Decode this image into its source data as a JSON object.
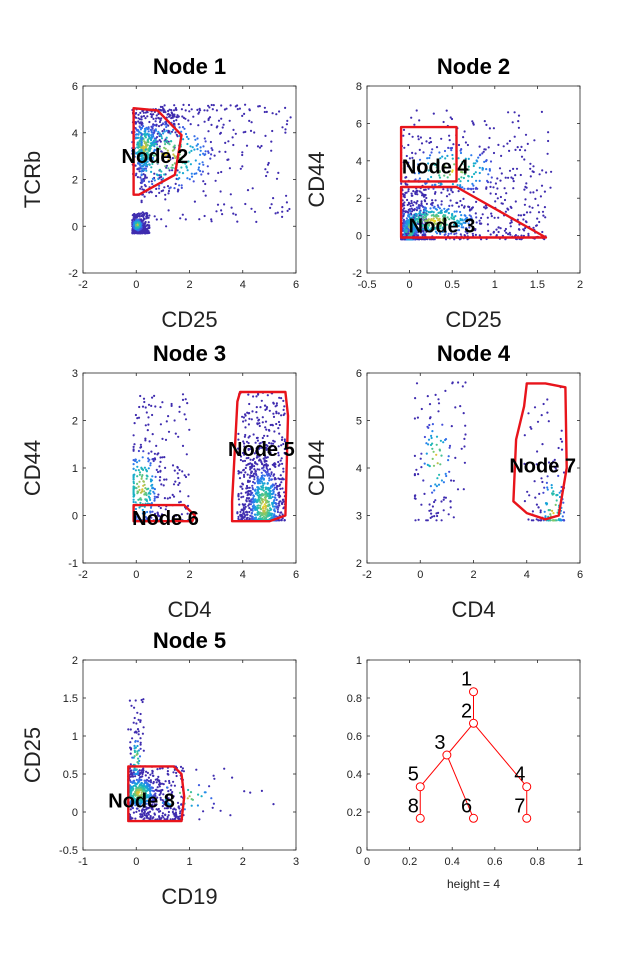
{
  "chart_data": [
    {
      "type": "scatter",
      "title": "Node 1",
      "xlabel": "CD25",
      "ylabel": "TCRb",
      "xlim": [
        -2,
        6
      ],
      "ylim": [
        -2,
        6
      ],
      "xticks": [
        -2,
        0,
        2,
        4,
        6
      ],
      "yticks": [
        -2,
        0,
        2,
        4,
        6
      ],
      "gates": [
        {
          "label": "Node 2",
          "label_at": [
            0.7,
            3.0
          ],
          "polygon": [
            [
              -0.1,
              5.05
            ],
            [
              0.8,
              4.95
            ],
            [
              1.7,
              3.9
            ],
            [
              1.45,
              2.2
            ],
            [
              0.1,
              1.35
            ],
            [
              -0.1,
              1.35
            ]
          ]
        }
      ],
      "clusters": [
        {
          "x": [
            -0.15,
            0.5
          ],
          "y": [
            -0.3,
            0.6
          ],
          "n": 520,
          "dense": [
            0.05,
            0.05
          ],
          "skew": 2
        },
        {
          "x": [
            -0.15,
            1.6
          ],
          "y": [
            1.5,
            5.0
          ],
          "n": 480,
          "dense": [
            0.3,
            3.4
          ],
          "skew": 2
        },
        {
          "x": [
            0.2,
            5.8
          ],
          "y": [
            0.0,
            5.2
          ],
          "n": 430,
          "dense": [
            1.2,
            3.0
          ],
          "skew": 1.6
        }
      ]
    },
    {
      "type": "scatter",
      "title": "Node 2",
      "xlabel": "CD25",
      "ylabel": "CD44",
      "xlim": [
        -0.5,
        2
      ],
      "ylim": [
        -2,
        8
      ],
      "xticks": [
        -0.5,
        0,
        0.5,
        1,
        1.5,
        2
      ],
      "yticks": [
        -2,
        0,
        2,
        4,
        6,
        8
      ],
      "gates": [
        {
          "label": "Node 4",
          "label_at": [
            0.3,
            3.7
          ],
          "polygon": [
            [
              -0.1,
              5.8
            ],
            [
              0.55,
              5.8
            ],
            [
              0.55,
              2.9
            ],
            [
              -0.1,
              2.9
            ]
          ]
        },
        {
          "label": "Node 3",
          "label_at": [
            0.38,
            0.55
          ],
          "polygon": [
            [
              -0.1,
              2.6
            ],
            [
              0.55,
              2.6
            ],
            [
              1.6,
              -0.1
            ],
            [
              -0.1,
              -0.1
            ]
          ]
        }
      ],
      "clusters": [
        {
          "x": [
            -0.1,
            0.2
          ],
          "y": [
            -0.2,
            2.5
          ],
          "n": 520,
          "dense": [
            0.0,
            0.3
          ],
          "skew": 2
        },
        {
          "x": [
            -0.1,
            1.6
          ],
          "y": [
            -0.2,
            2.7
          ],
          "n": 560,
          "dense": [
            0.3,
            0.8
          ],
          "skew": 1.8
        },
        {
          "x": [
            -0.1,
            1.7
          ],
          "y": [
            2.5,
            6.7
          ],
          "n": 300,
          "dense": [
            0.5,
            3.5
          ],
          "skew": 1.3
        }
      ]
    },
    {
      "type": "scatter",
      "title": "Node 3",
      "xlabel": "CD4",
      "ylabel": "CD44",
      "xlim": [
        -2,
        6
      ],
      "ylim": [
        -1,
        3
      ],
      "xticks": [
        -2,
        0,
        2,
        4,
        6
      ],
      "yticks": [
        -1,
        0,
        1,
        2,
        3
      ],
      "gates": [
        {
          "label": "Node 5",
          "label_at": [
            4.7,
            1.4
          ],
          "polygon": [
            [
              3.9,
              2.6
            ],
            [
              5.6,
              2.6
            ],
            [
              5.7,
              2.1
            ],
            [
              5.6,
              0.0
            ],
            [
              5.0,
              -0.12
            ],
            [
              3.6,
              -0.12
            ],
            [
              3.6,
              0.3
            ],
            [
              3.8,
              2.4
            ]
          ]
        },
        {
          "label": "Node 6",
          "label_at": [
            1.1,
            -0.05
          ],
          "polygon": [
            [
              -0.1,
              0.22
            ],
            [
              1.8,
              0.22
            ],
            [
              2.2,
              0.0
            ],
            [
              2.1,
              -0.12
            ],
            [
              -0.1,
              -0.12
            ]
          ]
        }
      ],
      "clusters": [
        {
          "x": [
            3.8,
            5.6
          ],
          "y": [
            -0.1,
            2.6
          ],
          "n": 900,
          "dense": [
            4.8,
            0.2
          ],
          "skew": 1.5
        },
        {
          "x": [
            -0.1,
            2.0
          ],
          "y": [
            -0.1,
            2.6
          ],
          "n": 330,
          "dense": [
            0.2,
            0.6
          ],
          "skew": 1.5
        }
      ]
    },
    {
      "type": "scatter",
      "title": "Node 4",
      "xlabel": "CD4",
      "ylabel": "CD44",
      "xlim": [
        -2,
        6
      ],
      "ylim": [
        2,
        6
      ],
      "xticks": [
        -2,
        0,
        2,
        4,
        6
      ],
      "yticks": [
        2,
        3,
        4,
        5,
        6
      ],
      "gates": [
        {
          "label": "Node 7",
          "label_at": [
            4.6,
            4.05
          ],
          "polygon": [
            [
              4.0,
              5.78
            ],
            [
              4.7,
              5.78
            ],
            [
              5.45,
              5.7
            ],
            [
              5.5,
              4.0
            ],
            [
              5.2,
              3.0
            ],
            [
              4.7,
              2.92
            ],
            [
              4.0,
              3.05
            ],
            [
              3.5,
              3.3
            ],
            [
              3.6,
              4.6
            ],
            [
              3.9,
              5.3
            ]
          ]
        }
      ],
      "clusters": [
        {
          "x": [
            -0.2,
            1.7
          ],
          "y": [
            2.9,
            5.8
          ],
          "n": 130,
          "dense": [
            0.6,
            4.2
          ],
          "skew": 1.0
        },
        {
          "x": [
            3.9,
            5.4
          ],
          "y": [
            2.9,
            5.8
          ],
          "n": 140,
          "dense": [
            5.0,
            3.1
          ],
          "skew": 1.5
        }
      ]
    },
    {
      "type": "scatter",
      "title": "Node 5",
      "xlabel": "CD19",
      "ylabel": "CD25",
      "xlim": [
        -1,
        3
      ],
      "ylim": [
        -0.5,
        2
      ],
      "xticks": [
        -1,
        0,
        1,
        2,
        3
      ],
      "yticks": [
        -0.5,
        0,
        0.5,
        1,
        1.5,
        2
      ],
      "gates": [
        {
          "label": "Node 8",
          "label_at": [
            0.1,
            0.15
          ],
          "polygon": [
            [
              -0.15,
              0.6
            ],
            [
              0.7,
              0.6
            ],
            [
              0.85,
              0.5
            ],
            [
              0.9,
              0.2
            ],
            [
              0.85,
              -0.12
            ],
            [
              -0.15,
              -0.12
            ]
          ]
        }
      ],
      "clusters": [
        {
          "x": [
            -0.15,
            0.9
          ],
          "y": [
            -0.1,
            0.6
          ],
          "n": 600,
          "dense": [
            0.05,
            0.25
          ],
          "skew": 1.6
        },
        {
          "x": [
            -0.15,
            0.15
          ],
          "y": [
            0.5,
            1.5
          ],
          "n": 90,
          "dense": [
            0.0,
            0.7
          ],
          "skew": 1.3
        },
        {
          "x": [
            0.5,
            2.6
          ],
          "y": [
            -0.1,
            0.6
          ],
          "n": 40,
          "dense": [
            0.9,
            0.2
          ],
          "skew": 1.5
        }
      ]
    },
    {
      "type": "tree",
      "xlabel": "height = 4",
      "xlim": [
        0,
        1
      ],
      "ylim": [
        0,
        1
      ],
      "xticks": [
        0,
        0.2,
        0.4,
        0.6,
        0.8,
        1
      ],
      "yticks": [
        0,
        0.2,
        0.4,
        0.6,
        0.8,
        1
      ],
      "nodes": [
        {
          "id": "1",
          "x": 0.5,
          "y": 0.833
        },
        {
          "id": "2",
          "x": 0.5,
          "y": 0.667
        },
        {
          "id": "3",
          "x": 0.375,
          "y": 0.5
        },
        {
          "id": "4",
          "x": 0.75,
          "y": 0.333
        },
        {
          "id": "5",
          "x": 0.25,
          "y": 0.333
        },
        {
          "id": "6",
          "x": 0.5,
          "y": 0.167
        },
        {
          "id": "7",
          "x": 0.75,
          "y": 0.167
        },
        {
          "id": "8",
          "x": 0.25,
          "y": 0.167
        }
      ],
      "edges": [
        [
          "1",
          "2"
        ],
        [
          "2",
          "3"
        ],
        [
          "2",
          "4"
        ],
        [
          "3",
          "5"
        ],
        [
          "3",
          "6"
        ],
        [
          "4",
          "7"
        ],
        [
          "5",
          "8"
        ]
      ],
      "color": "#ff0000"
    }
  ],
  "colors": {
    "gate": "#e8141b",
    "tree": "#ff0000",
    "axis": "#262626",
    "low": "#3b3ba0",
    "high": "#f5d62a"
  }
}
